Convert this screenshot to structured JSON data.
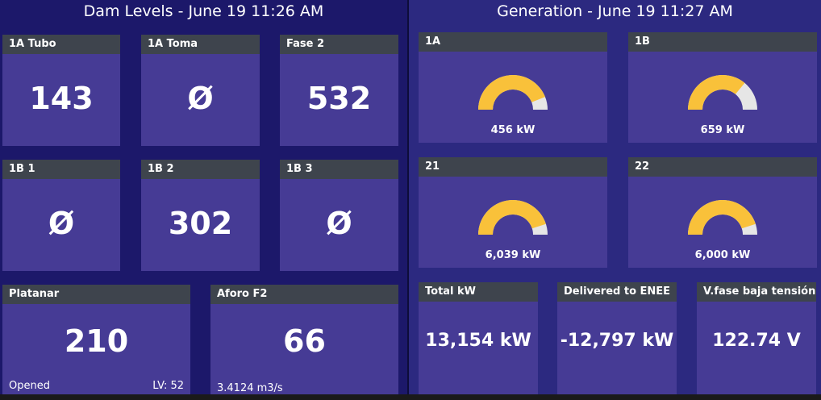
{
  "dam": {
    "title": "Dam Levels - June 19 11:26 AM",
    "cards": [
      {
        "label": "1A Tubo",
        "value": "143"
      },
      {
        "label": "1A Toma",
        "value": "Ø"
      },
      {
        "label": "Fase 2",
        "value": "532"
      },
      {
        "label": "1B 1",
        "value": "Ø"
      },
      {
        "label": "1B 2",
        "value": "302"
      },
      {
        "label": "1B 3",
        "value": "Ø"
      }
    ],
    "platanar": {
      "label": "Platanar",
      "value": "210",
      "status": "Opened",
      "level": "LV: 52"
    },
    "aforo": {
      "label": "Aforo F2",
      "value": "66",
      "flow": "3.4124 m3/s"
    }
  },
  "generation": {
    "title": "Generation - June 19 11:27 AM",
    "units": [
      {
        "label": "1A",
        "value": "456 kW",
        "fill": 0.88
      },
      {
        "label": "1B",
        "value": "659 kW",
        "fill": 0.72
      },
      {
        "label": "21",
        "value": "6,039 kW",
        "fill": 0.9
      },
      {
        "label": "22",
        "value": "6,000 kW",
        "fill": 0.9
      }
    ],
    "totals": [
      {
        "label": "Total kW",
        "value": "13,154 kW"
      },
      {
        "label": "Delivered to ENEE",
        "value": "-12,797 kW"
      },
      {
        "label": "V.fase baja tensión",
        "value": "122.74 V"
      }
    ]
  },
  "colors": {
    "gauge_fill": "#f9c13a",
    "gauge_track": "#e6e6e6"
  }
}
